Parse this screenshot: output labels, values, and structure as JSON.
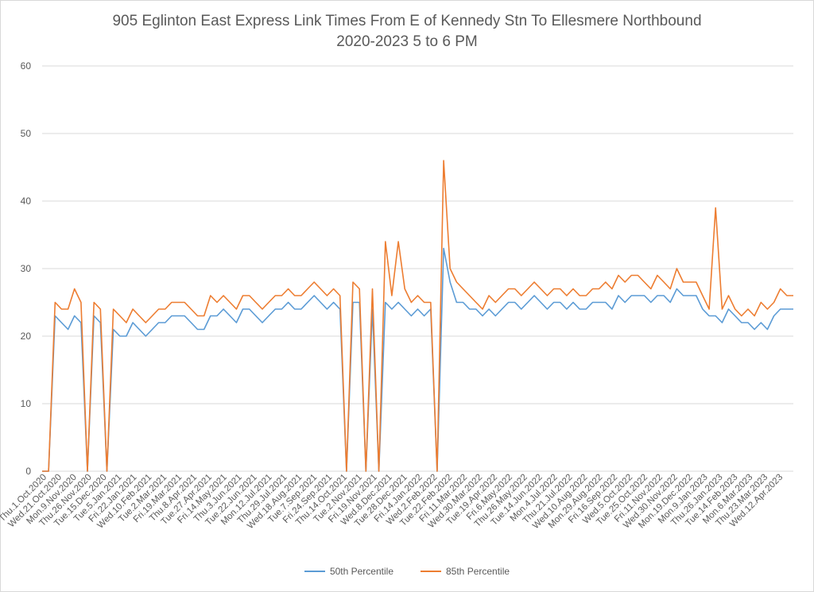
{
  "chart_data": {
    "type": "line",
    "title": "905 Eglinton East Express Link Times From E of Kennedy Stn To Ellesmere Northbound",
    "subtitle": "2020-2023 5 to 6 PM",
    "xlabel": "",
    "ylabel": "",
    "ylim": [
      0,
      60
    ],
    "yticks": [
      0,
      10,
      20,
      30,
      40,
      50,
      60
    ],
    "grid": true,
    "legend": "bottom",
    "x_tick_labels": [
      "Thu.1.Oct.2020",
      "Wed.21.Oct.2020",
      "Mon.9.Nov.2020",
      "Thu.26.Nov.2020",
      "Tue.15.Dec.2020",
      "Tue.5.Jan.2021",
      "Fri.22.Jan.2021",
      "Wed.10.Feb.2021",
      "Tue.2.Mar.2021",
      "Fri.19.Mar.2021",
      "Thu.8.Apr.2021",
      "Tue.27.Apr.2021",
      "Fri.14.May.2021",
      "Thu.3.Jun.2021",
      "Tue.22.Jun.2021",
      "Mon.12.Jul.2021",
      "Thu.29.Jul.2021",
      "Wed.18.Aug.2021",
      "Tue.7.Sep.2021",
      "Fri.24.Sep.2021",
      "Thu.14.Oct.2021",
      "Tue.2.Nov.2021",
      "Fri.19.Nov.2021",
      "Wed.8.Dec.2021",
      "Tue.28.Dec.2021",
      "Fri.14.Jan.2022",
      "Wed.2.Feb.2022",
      "Tue.22.Feb.2022",
      "Fri.11.Mar.2022",
      "Wed.30.Mar.2022",
      "Tue.19.Apr.2022",
      "Fri.6.May.2022",
      "Thu.26.May.2022",
      "Tue.14.Jun.2022",
      "Mon.4.Jul.2022",
      "Thu.21.Jul.2022",
      "Wed.10.Aug.2022",
      "Mon.29.Aug.2022",
      "Fri.16.Sep.2022",
      "Wed.5.Oct.2022",
      "Tue.25.Oct.2022",
      "Fri.11.Nov.2022",
      "Wed.30.Nov.2022",
      "Mon.19.Dec.2022",
      "Mon.9.Jan.2023",
      "Thu.26.Jan.2023",
      "Tue.14.Feb.2023",
      "Mon.6.Mar.2023",
      "Thu.23.Mar.2023",
      "Wed.12.Apr.2023"
    ],
    "series": [
      {
        "name": "50th Percentile",
        "color": "#5b9bd5",
        "values": [
          0,
          0,
          23,
          22,
          21,
          23,
          22,
          0,
          23,
          22,
          0,
          21,
          20,
          20,
          22,
          21,
          20,
          21,
          22,
          22,
          23,
          23,
          23,
          22,
          21,
          21,
          23,
          23,
          24,
          23,
          22,
          24,
          24,
          23,
          22,
          23,
          24,
          24,
          25,
          24,
          24,
          25,
          26,
          25,
          24,
          25,
          24,
          0,
          25,
          25,
          0,
          24,
          0,
          25,
          24,
          25,
          24,
          23,
          24,
          23,
          24,
          0,
          33,
          28,
          25,
          25,
          24,
          24,
          23,
          24,
          23,
          24,
          25,
          25,
          24,
          25,
          26,
          25,
          24,
          25,
          25,
          24,
          25,
          24,
          24,
          25,
          25,
          25,
          24,
          26,
          25,
          26,
          26,
          26,
          25,
          26,
          26,
          25,
          27,
          26,
          26,
          26,
          24,
          23,
          23,
          22,
          24,
          23,
          22,
          22,
          21,
          22,
          21,
          23,
          24,
          24,
          24
        ]
      },
      {
        "name": "85th Percentile",
        "color": "#ed7d31",
        "values": [
          0,
          0,
          25,
          24,
          24,
          27,
          25,
          0,
          25,
          24,
          0,
          24,
          23,
          22,
          24,
          23,
          22,
          23,
          24,
          24,
          25,
          25,
          25,
          24,
          23,
          23,
          26,
          25,
          26,
          25,
          24,
          26,
          26,
          25,
          24,
          25,
          26,
          26,
          27,
          26,
          26,
          27,
          28,
          27,
          26,
          27,
          26,
          0,
          28,
          27,
          0,
          27,
          0,
          34,
          26,
          34,
          27,
          25,
          26,
          25,
          25,
          0,
          46,
          30,
          28,
          27,
          26,
          25,
          24,
          26,
          25,
          26,
          27,
          27,
          26,
          27,
          28,
          27,
          26,
          27,
          27,
          26,
          27,
          26,
          26,
          27,
          27,
          28,
          27,
          29,
          28,
          29,
          29,
          28,
          27,
          29,
          28,
          27,
          30,
          28,
          28,
          28,
          26,
          24,
          39,
          24,
          26,
          24,
          23,
          24,
          23,
          25,
          24,
          25,
          27,
          26,
          26
        ]
      }
    ]
  }
}
